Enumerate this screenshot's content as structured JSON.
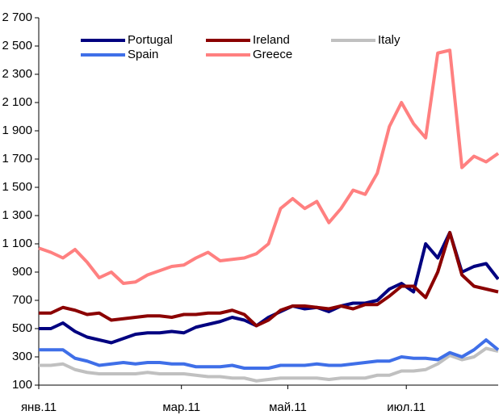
{
  "chart_data": {
    "type": "line",
    "x": [
      0,
      5,
      10,
      15,
      20,
      25,
      30,
      35,
      40,
      45,
      50,
      55,
      60,
      65,
      70,
      75,
      80,
      85,
      90,
      95,
      100,
      105,
      110,
      115,
      120,
      125,
      130,
      135,
      140,
      145,
      150,
      155,
      160,
      165,
      170,
      175,
      180,
      185,
      190
    ],
    "xlim": [
      0,
      190
    ],
    "xticks": [
      {
        "value": 0,
        "label": "янв.11"
      },
      {
        "value": 59,
        "label": "мар.11"
      },
      {
        "value": 103,
        "label": "май.11"
      },
      {
        "value": 152,
        "label": "июл.11"
      }
    ],
    "ylim": [
      100,
      2700
    ],
    "yticks": [
      100,
      300,
      500,
      700,
      900,
      {
        "value": 1100,
        "label": "1 100"
      },
      {
        "value": 1300,
        "label": "1 300"
      },
      {
        "value": 1500,
        "label": "1 500"
      },
      {
        "value": 1700,
        "label": "1 700"
      },
      {
        "value": 1900,
        "label": "1 900"
      },
      {
        "value": 2100,
        "label": "2 100"
      },
      {
        "value": 2300,
        "label": "2 300"
      },
      {
        "value": 2500,
        "label": "2 500"
      },
      {
        "value": 2700,
        "label": "2 700"
      }
    ],
    "grid": false,
    "series": [
      {
        "name": "Portugal",
        "color": "#000080",
        "values": [
          500,
          500,
          540,
          480,
          440,
          420,
          400,
          430,
          460,
          470,
          470,
          480,
          470,
          510,
          530,
          550,
          580,
          560,
          520,
          580,
          620,
          660,
          640,
          650,
          620,
          660,
          680,
          680,
          700,
          780,
          820,
          760,
          1100,
          1000,
          1180,
          900,
          940,
          960,
          850
        ]
      },
      {
        "name": "Ireland",
        "color": "#8b0000",
        "values": [
          610,
          610,
          650,
          630,
          600,
          610,
          560,
          570,
          580,
          590,
          590,
          580,
          600,
          600,
          610,
          610,
          630,
          600,
          520,
          560,
          630,
          660,
          660,
          650,
          640,
          660,
          640,
          670,
          670,
          730,
          800,
          800,
          720,
          900,
          1180,
          880,
          800,
          780,
          760
        ]
      },
      {
        "name": "Italy",
        "color": "#c0c0c0",
        "values": [
          240,
          240,
          250,
          210,
          190,
          180,
          180,
          180,
          180,
          190,
          180,
          180,
          180,
          170,
          160,
          160,
          150,
          150,
          130,
          140,
          150,
          150,
          150,
          150,
          140,
          150,
          150,
          150,
          170,
          170,
          200,
          200,
          210,
          250,
          310,
          280,
          300,
          360,
          340
        ]
      },
      {
        "name": "Spain",
        "color": "#3f6fe8",
        "values": [
          350,
          350,
          350,
          290,
          270,
          240,
          250,
          260,
          250,
          260,
          260,
          250,
          250,
          230,
          230,
          230,
          240,
          220,
          220,
          220,
          240,
          240,
          240,
          250,
          240,
          240,
          250,
          260,
          270,
          270,
          300,
          290,
          290,
          280,
          330,
          300,
          350,
          420,
          350
        ]
      },
      {
        "name": "Greece",
        "color": "#ff8080",
        "values": [
          1070,
          1040,
          1000,
          1060,
          970,
          860,
          900,
          820,
          830,
          880,
          910,
          940,
          950,
          1000,
          1040,
          980,
          990,
          1000,
          1030,
          1100,
          1350,
          1420,
          1350,
          1400,
          1250,
          1350,
          1480,
          1450,
          1600,
          1930,
          2100,
          1950,
          1850,
          2450,
          2470,
          1640,
          1720,
          1680,
          1740
        ]
      }
    ]
  }
}
